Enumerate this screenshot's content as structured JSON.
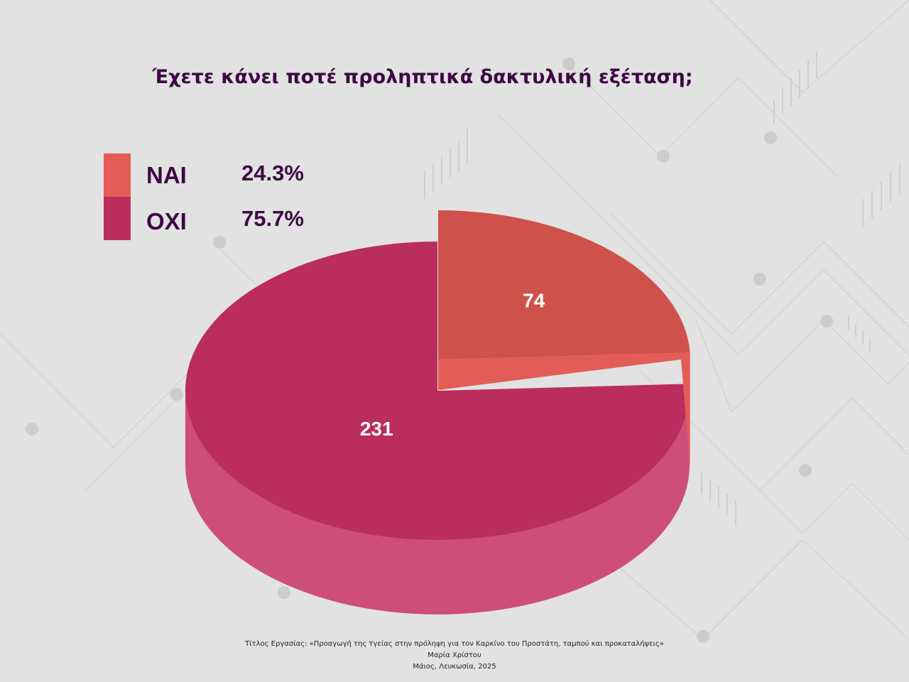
{
  "title": "Έχετε κάνει ποτέ προληπτικά δακτυλική εξέταση;",
  "colors": {
    "background": "#e2e2e2",
    "nai_top": "#cf514b",
    "nai_side": "#e45c56",
    "oxi_top": "#ba2d5c",
    "oxi_side": "#cc4e79",
    "text": "#3d0a44"
  },
  "legend": [
    {
      "label": "ΝΑΙ",
      "percent": "24.3%",
      "color": "#e45c56"
    },
    {
      "label": "ΟΧΙ",
      "percent": "75.7%",
      "color": "#ba2d5c"
    }
  ],
  "chart_data": {
    "type": "pie",
    "title": "Έχετε κάνει ποτέ προληπτικά δακτυλική εξέταση;",
    "categories": [
      "ΝΑΙ",
      "ΟΧΙ"
    ],
    "values": [
      74,
      231
    ],
    "percentages": [
      24.3,
      75.7
    ],
    "data_labels": [
      "74",
      "231"
    ],
    "exploded": "ΝΑΙ",
    "style": "3d",
    "legend": "top-left"
  },
  "footer": {
    "line1": "Τίτλος Εργασίας: «Προαγωγή της Υγείας στην πρόληψη για τον Καρκίνο του Προστάτη, ταμπού και προκαταλήψεις»",
    "line2": "Μαρία Χρίστου",
    "line3": "Μάιος, Λευκωσία, 2025"
  }
}
